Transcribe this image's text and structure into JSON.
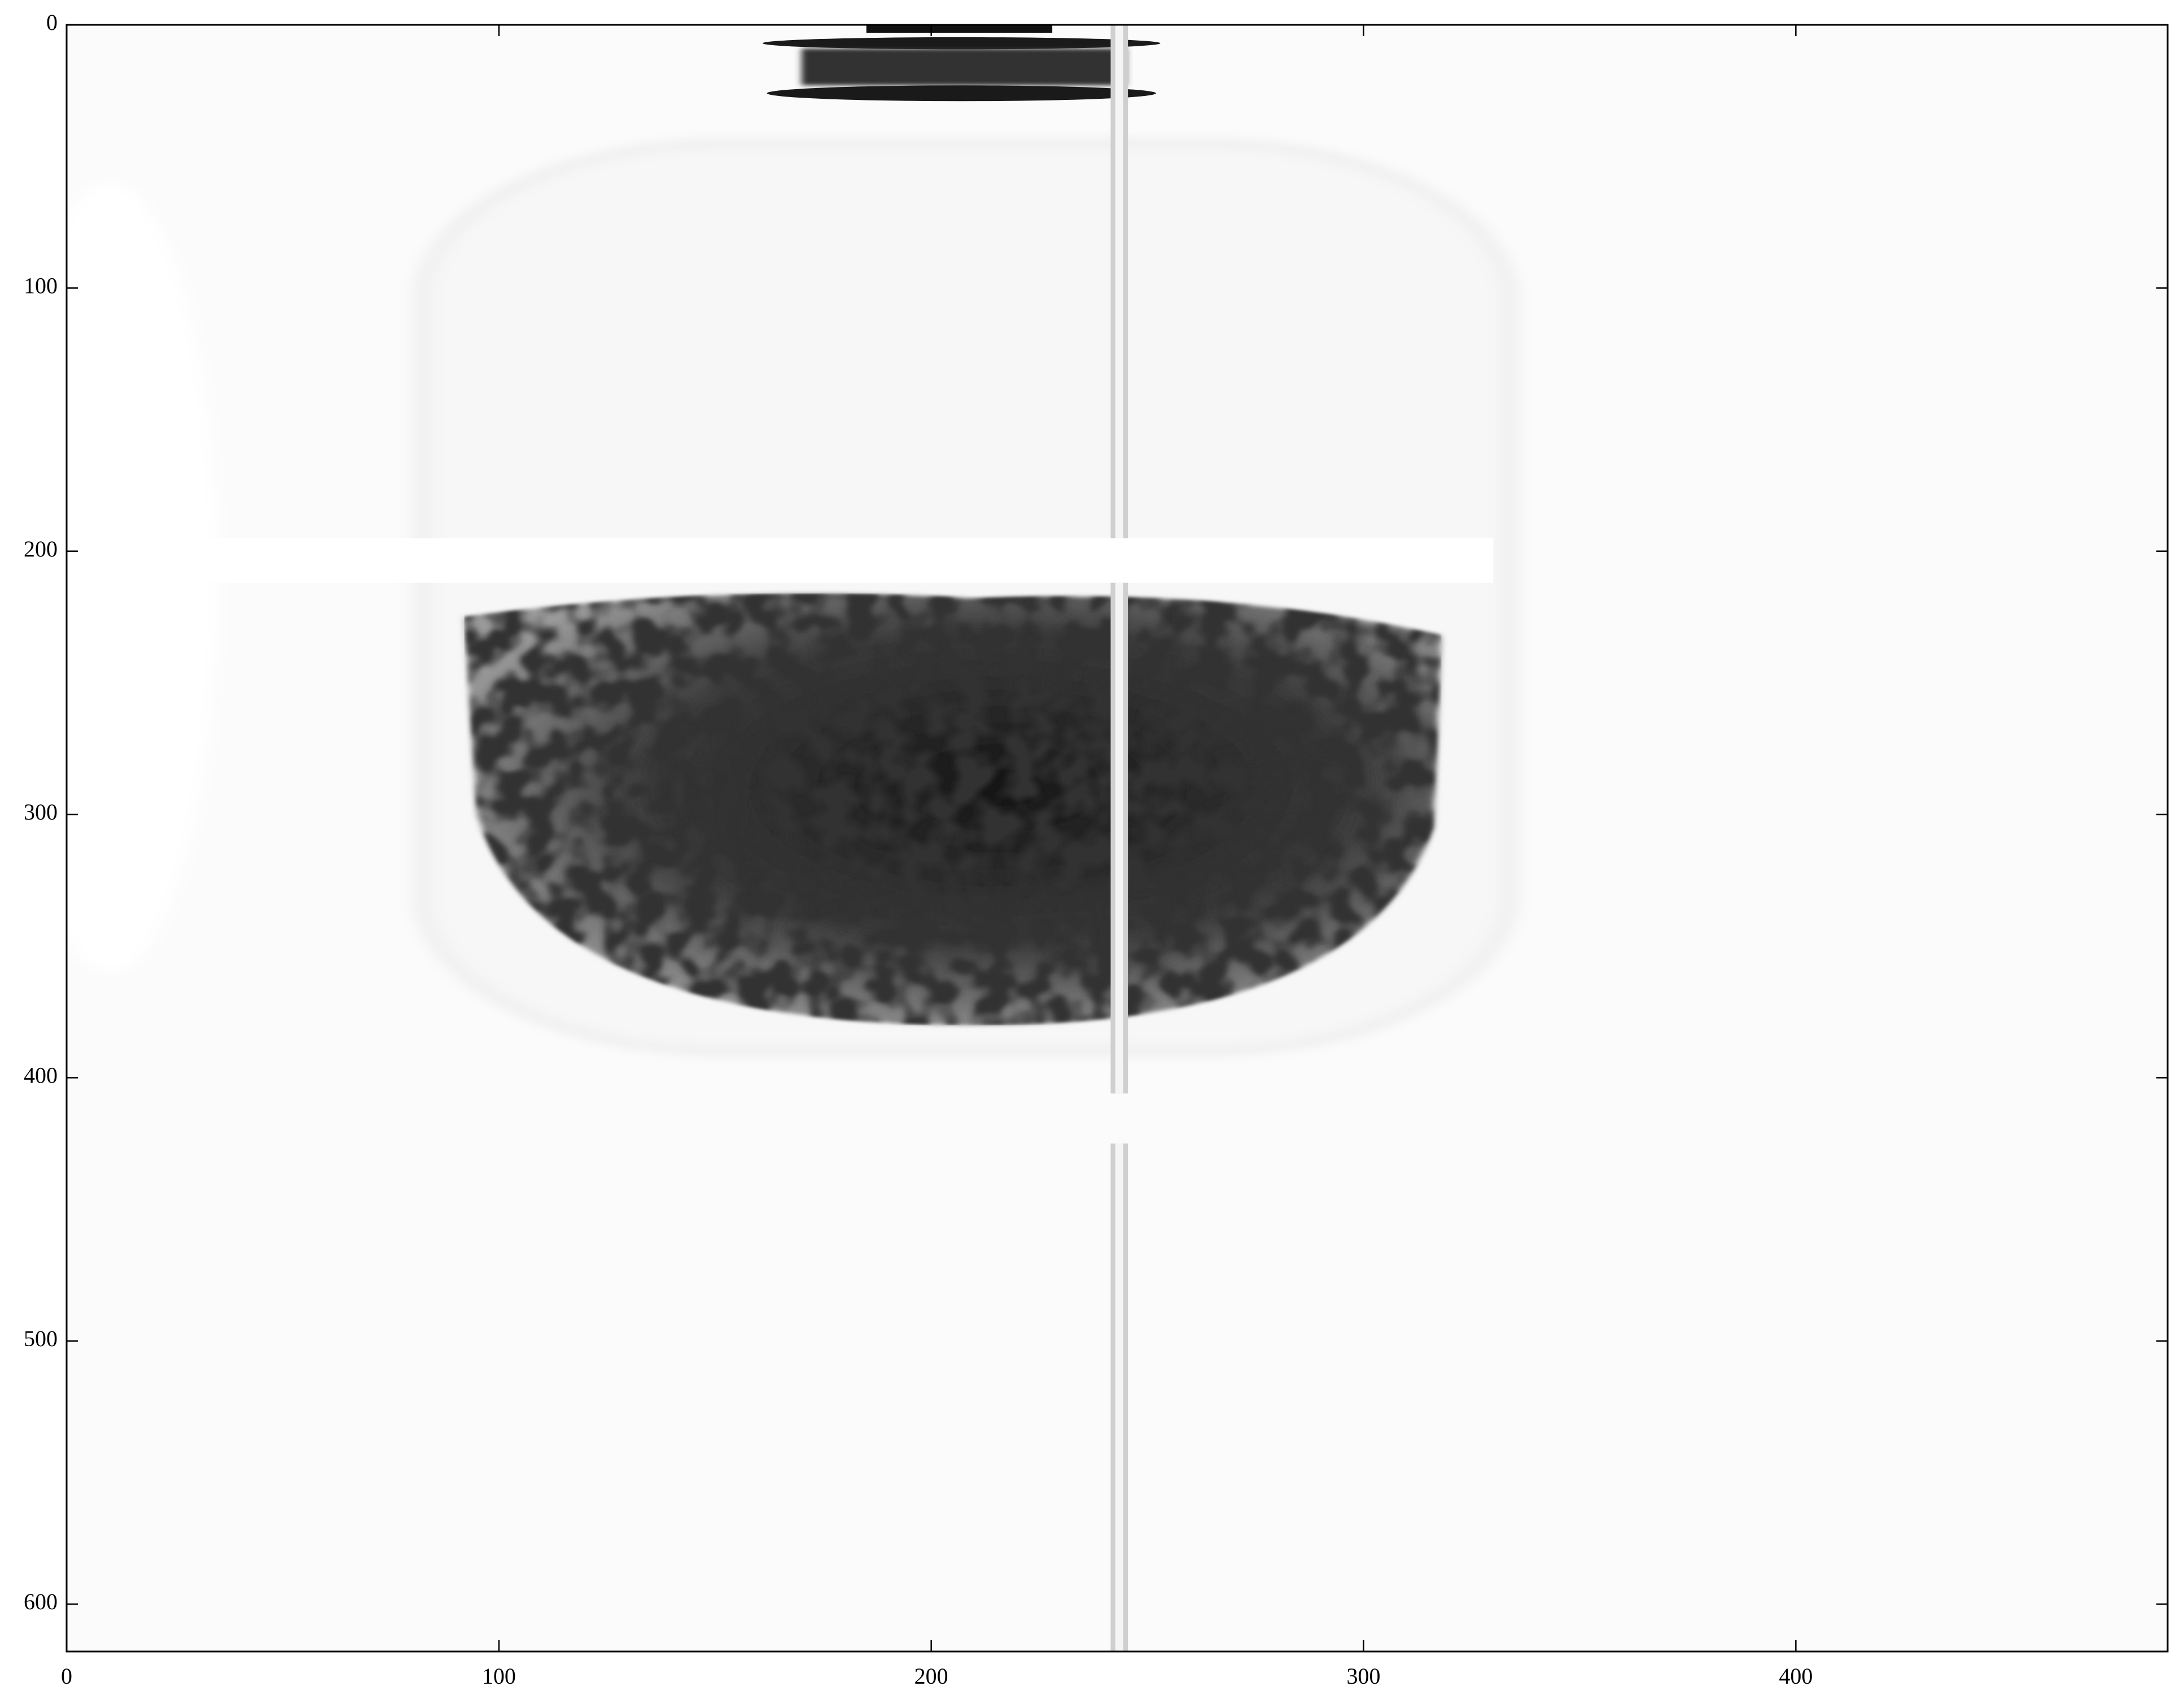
{
  "chart_data": {
    "type": "image",
    "xlim": [
      0,
      486
    ],
    "xticks": [
      0,
      100,
      200,
      300,
      400
    ],
    "ylim": [
      618,
      0
    ],
    "yticks": [
      0,
      100,
      200,
      300,
      400,
      500,
      600
    ]
  }
}
